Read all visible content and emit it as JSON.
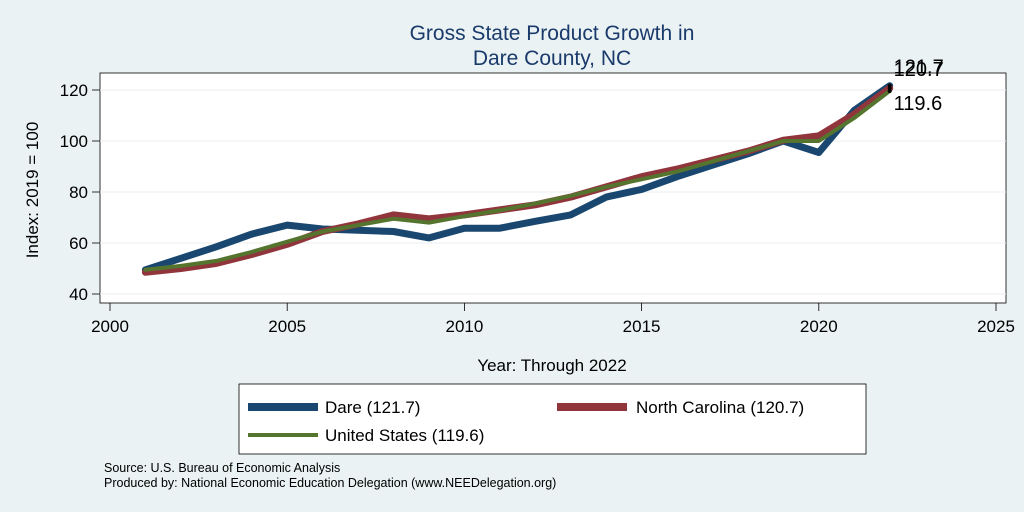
{
  "chart_data": {
    "type": "line",
    "title": [
      "Gross State Product Growth in",
      "Dare County, NC"
    ],
    "xlabel": "Year: Through 2022",
    "ylabel": "Index: 2019 = 100",
    "xlim": [
      2000,
      2025
    ],
    "ylim": [
      40,
      125
    ],
    "xticks": [
      2000,
      2005,
      2010,
      2015,
      2020,
      2025
    ],
    "yticks": [
      40,
      60,
      80,
      100,
      120
    ],
    "grid": true,
    "x": [
      2001,
      2002,
      2003,
      2004,
      2005,
      2006,
      2007,
      2008,
      2009,
      2010,
      2011,
      2012,
      2013,
      2014,
      2015,
      2016,
      2017,
      2018,
      2019,
      2020,
      2021,
      2022
    ],
    "series": [
      {
        "name": "Dare  (121.7)",
        "color": "#1a476f",
        "end_label": "121.7",
        "values": [
          49.5,
          54,
          58.5,
          63.5,
          67,
          65.5,
          65,
          64.5,
          62,
          65.8,
          65.8,
          68.5,
          71,
          78,
          81,
          86,
          90.5,
          95,
          100,
          95.5,
          112,
          121.7
        ]
      },
      {
        "name": "North Carolina (120.7)",
        "color": "#90353b",
        "end_label": "120.7",
        "values": [
          48.5,
          50,
          52,
          55.5,
          59.5,
          64.5,
          67.5,
          71,
          69.5,
          71,
          73,
          75,
          78,
          82,
          86,
          89,
          92.5,
          96,
          100.3,
          102,
          110.5,
          120.7
        ]
      },
      {
        "name": "United States (119.6)",
        "color": "#55752f",
        "end_label": "119.6",
        "values": [
          49.5,
          51,
          53,
          56.5,
          60.5,
          64.5,
          67,
          69.5,
          68,
          70.5,
          72.8,
          75.5,
          78.5,
          82,
          85,
          88,
          92,
          96,
          100,
          100,
          109,
          119.6
        ]
      }
    ],
    "legend": {
      "position": "bottom",
      "items": [
        "Dare  (121.7)",
        "North Carolina (120.7)",
        "United States (119.6)"
      ]
    },
    "notes": [
      "Source: U.S. Bureau of Economic Analysis",
      "Produced by: National Economic Education Delegation (www.NEEDelegation.org)"
    ]
  }
}
